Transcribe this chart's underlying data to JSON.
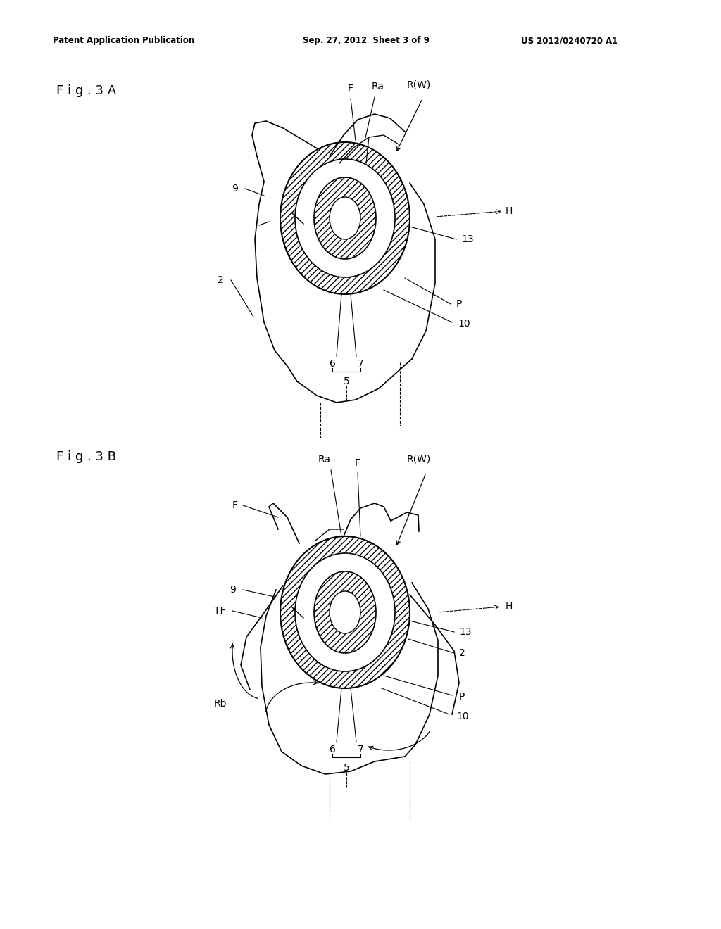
{
  "bg_color": "#ffffff",
  "line_color": "#000000",
  "header_left": "Patent Application Publication",
  "header_mid": "Sep. 27, 2012  Sheet 3 of 9",
  "header_right": "US 2012/0240720 A1",
  "fig3a_label": "F i g . 3 A",
  "fig3b_label": "F i g . 3 B",
  "fig_width": 10.24,
  "fig_height": 13.2,
  "dpi": 100
}
